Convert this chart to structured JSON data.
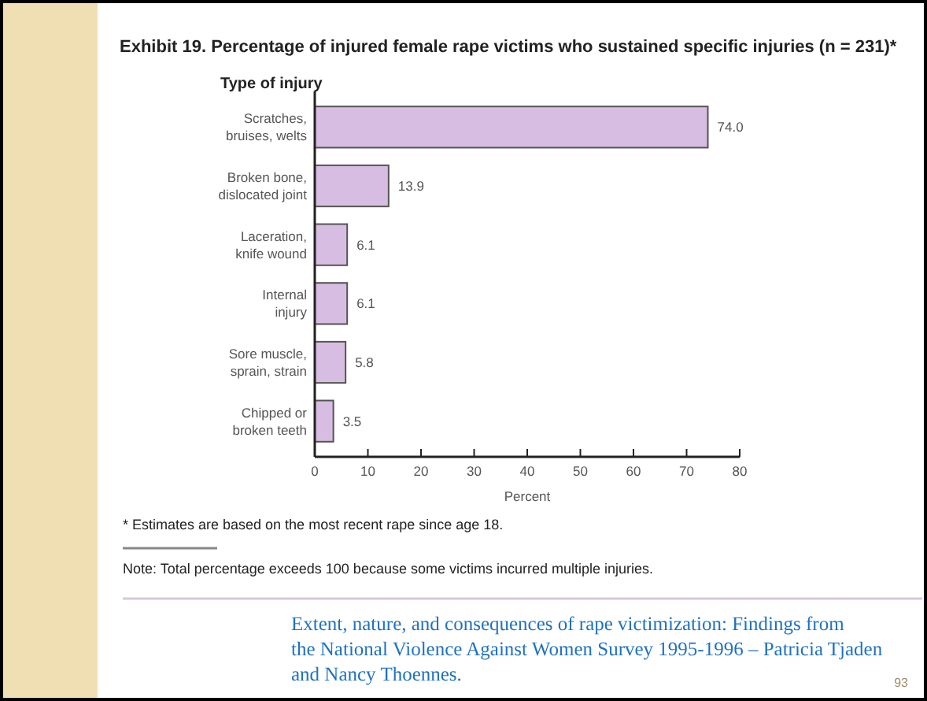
{
  "chart_data": {
    "type": "bar",
    "orientation": "horizontal",
    "title": "Exhibit 19. Percentage of injured female rape victims who sustained specific injuries (n = 231)*",
    "ylabel": "Type of injury",
    "xlabel": "Percent",
    "categories": [
      "Scratches, bruises, welts",
      "Broken bone, dislocated joint",
      "Laceration, knife wound",
      "Internal injury",
      "Sore muscle, sprain, strain",
      "Chipped or broken teeth"
    ],
    "values": [
      74.0,
      13.9,
      6.1,
      6.1,
      5.8,
      3.5
    ],
    "value_labels": [
      "74.0",
      "13.9",
      "6.1",
      "6.1",
      "5.8",
      "3.5"
    ],
    "color": "#d7bde2",
    "xlim": [
      0,
      80
    ],
    "xticks": [
      0,
      10,
      20,
      30,
      40,
      50,
      60,
      70,
      80
    ],
    "grid": false,
    "annotations": [
      "* Estimates are based on the most recent rape since age 18.",
      "Note: Total percentage exceeds 100 because some victims incurred multiple injuries.",
      "Extent, nature, and consequences of rape victimization: Findings from the National Violence Against Women Survey 1995-1996 – Patricia Tjaden and Nancy Thoennes.",
      "93"
    ]
  }
}
